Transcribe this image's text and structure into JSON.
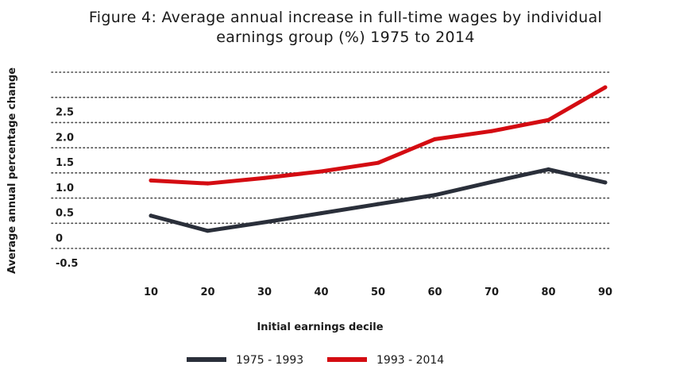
{
  "chart_data": {
    "type": "line",
    "title_line1": "Figure 4: Average annual increase in full-time wages by individual",
    "title_line2": "earnings group (%) 1975 to 2014",
    "xlabel": "Initial earnings decile",
    "ylabel": "Average annual percentage change",
    "x": [
      10,
      20,
      30,
      40,
      50,
      60,
      70,
      80,
      90
    ],
    "x_tick_labels": [
      "10",
      "20",
      "30",
      "40",
      "50",
      "60",
      "70",
      "80",
      "90"
    ],
    "y_tick_labels": [
      "-0.5",
      "0",
      "0.5",
      "1.0",
      "1.5",
      "2.0",
      "2.5"
    ],
    "y_ticks": [
      -0.5,
      0,
      0.5,
      1.0,
      1.5,
      2.0,
      2.5
    ],
    "ylim": [
      -0.5,
      3.0
    ],
    "grid": "horizontal dotted",
    "legend_position": "bottom",
    "series": [
      {
        "name": "1975 - 1993",
        "color": "#2a2f3a",
        "values": [
          0.15,
          -0.15,
          0.02,
          0.2,
          0.38,
          0.56,
          0.82,
          1.07,
          0.81
        ]
      },
      {
        "name": "1993 - 2014",
        "color": "#d40c12",
        "values": [
          0.85,
          0.79,
          0.9,
          1.03,
          1.2,
          1.67,
          1.83,
          2.05,
          2.7
        ]
      }
    ]
  }
}
